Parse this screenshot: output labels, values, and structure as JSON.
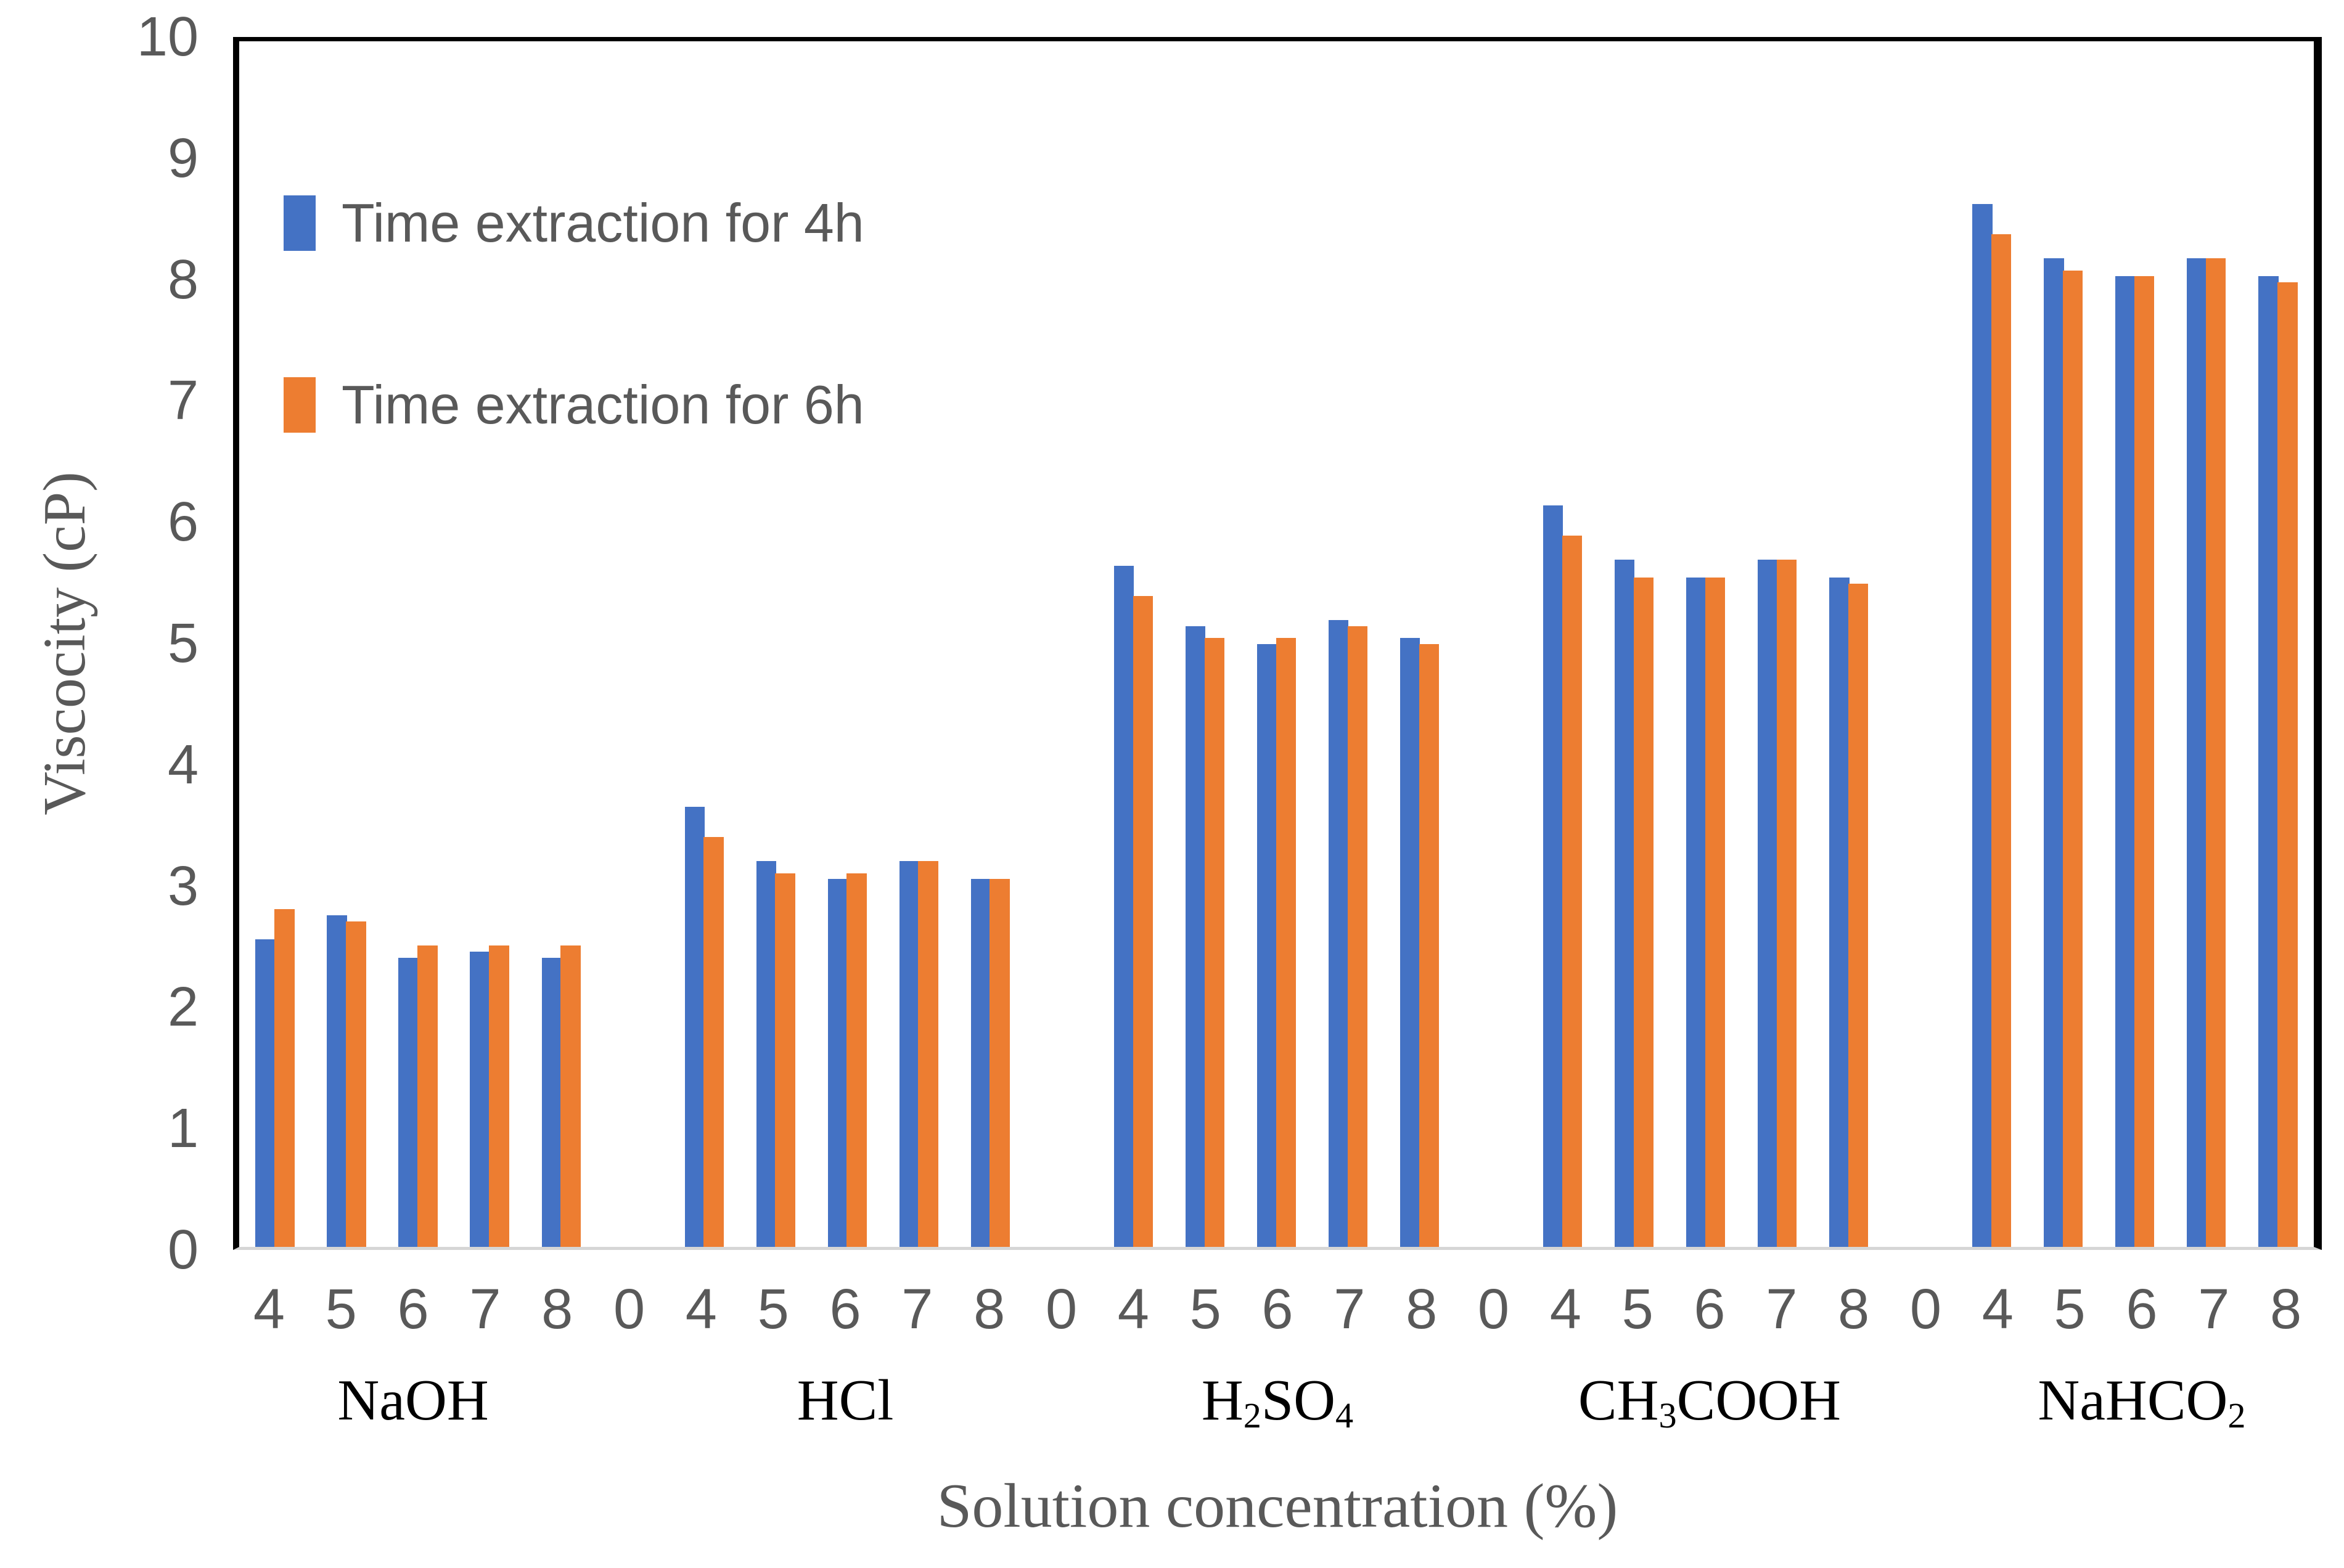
{
  "chart_data": {
    "type": "bar",
    "title": "",
    "ylabel": "Viscocity (cP)",
    "xlabel": "Solution concentration (%)",
    "ylim": [
      0,
      10
    ],
    "yticks": [
      "10",
      "9",
      "8",
      "7",
      "6",
      "5",
      "4",
      "3",
      "2",
      "1",
      "0"
    ],
    "grid": false,
    "legend_position": "top-left",
    "concentrations": [
      "4",
      "5",
      "6",
      "7",
      "8"
    ],
    "group_separator_label": "0",
    "groups": [
      {
        "name": "NaOH",
        "label_parts": [
          [
            "NaOH",
            false
          ]
        ]
      },
      {
        "name": "HCl",
        "label_parts": [
          [
            "HCl",
            false
          ]
        ]
      },
      {
        "name": "H2SO4",
        "label_parts": [
          [
            "H",
            false
          ],
          [
            "2",
            true
          ],
          [
            "SO",
            false
          ],
          [
            "4",
            true
          ]
        ]
      },
      {
        "name": "CH3COOH",
        "label_parts": [
          [
            "CH",
            false
          ],
          [
            "3",
            true
          ],
          [
            "COOH",
            false
          ]
        ]
      },
      {
        "name": "NaHCO2",
        "label_parts": [
          [
            "NaHCO",
            false
          ],
          [
            "2",
            true
          ]
        ]
      }
    ],
    "series": [
      {
        "name": "Time extraction for 4h",
        "color": "#4472C4",
        "values": [
          [
            2.55,
            2.75,
            2.4,
            2.45,
            2.4
          ],
          [
            3.65,
            3.2,
            3.05,
            3.2,
            3.05
          ],
          [
            5.65,
            5.15,
            5.0,
            5.2,
            5.05
          ],
          [
            6.15,
            5.7,
            5.55,
            5.7,
            5.55
          ],
          [
            8.65,
            8.2,
            8.05,
            8.2,
            8.05
          ]
        ]
      },
      {
        "name": "Time extraction for 6h",
        "color": "#ED7D31",
        "values": [
          [
            2.8,
            2.7,
            2.5,
            2.5,
            2.5
          ],
          [
            3.4,
            3.1,
            3.1,
            3.2,
            3.05
          ],
          [
            5.4,
            5.05,
            5.05,
            5.15,
            5.0
          ],
          [
            5.9,
            5.55,
            5.55,
            5.7,
            5.5
          ],
          [
            8.4,
            8.1,
            8.05,
            8.2,
            8.0
          ]
        ]
      }
    ],
    "axis_colors": {
      "tick_text": "#595959",
      "plot_border": "#000000",
      "baseline": "#d6d6d6"
    }
  }
}
